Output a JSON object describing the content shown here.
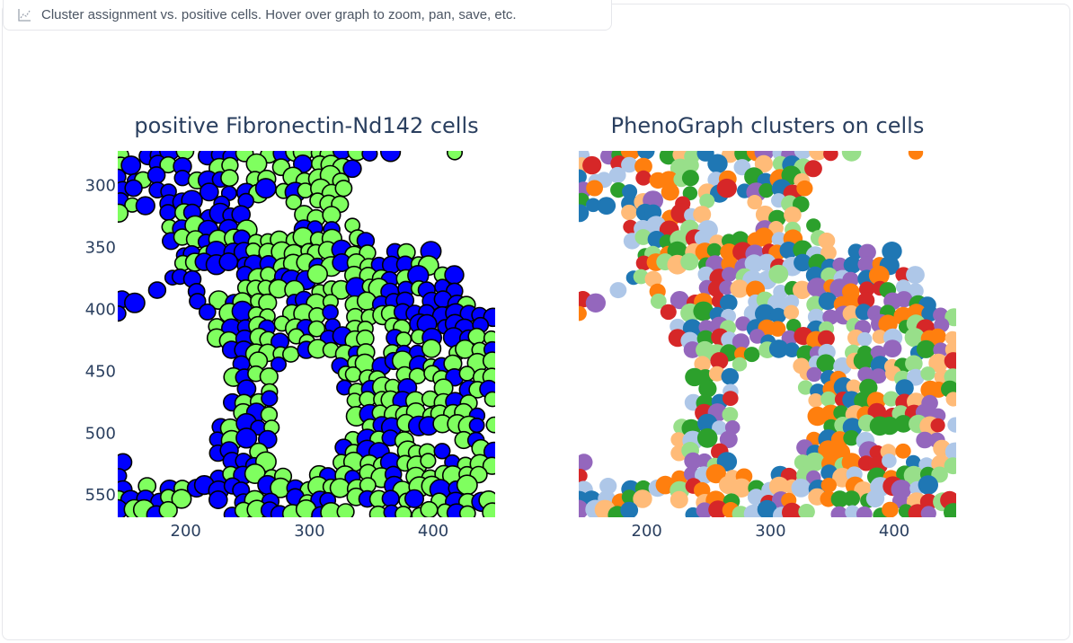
{
  "block_label": {
    "icon": "chart-icon",
    "text": "Cluster assignment vs. positive cells. Hover over graph to zoom, pan, save, etc."
  },
  "colors": {
    "negative_cell": "#0000ff",
    "positive_cell": "#7fff5f",
    "cell_outline": "#000000",
    "clusters": [
      "#1f77b4",
      "#ff7f0e",
      "#2ca02c",
      "#d62728",
      "#9467bd",
      "#ffbb78",
      "#aec7e8",
      "#98df8a"
    ]
  },
  "chart_data": [
    {
      "type": "heatmap",
      "title": "positive Fibronectin-Nd142 cells",
      "xlim": [
        145,
        450
      ],
      "ylim": [
        568,
        272
      ],
      "x_ticks": [
        "200",
        "300",
        "400"
      ],
      "y_ticks": [
        "300",
        "350",
        "400",
        "450",
        "500",
        "550"
      ],
      "categories": [
        "negative",
        "positive"
      ]
    },
    {
      "type": "heatmap",
      "title": "PhenoGraph clusters on cells",
      "xlim": [
        145,
        450
      ],
      "ylim": [
        568,
        272
      ],
      "x_ticks": [
        "200",
        "300",
        "400"
      ],
      "y_ticks": []
    }
  ]
}
